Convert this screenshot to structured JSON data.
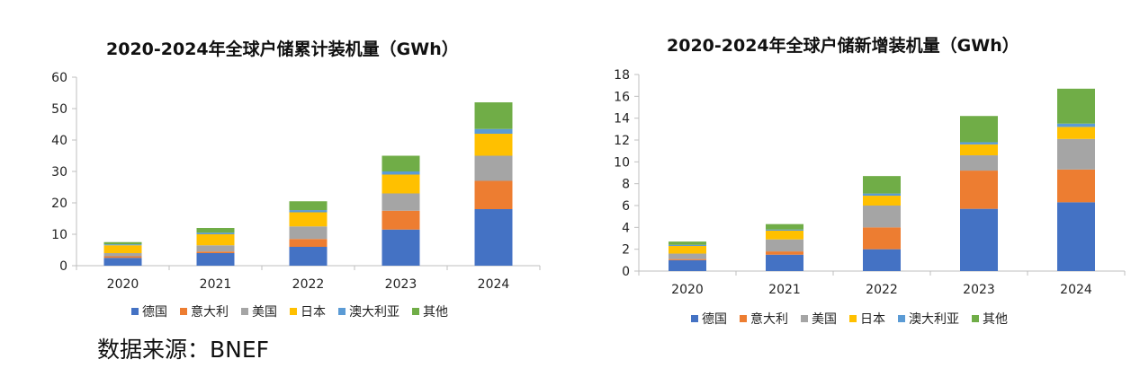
{
  "source_note": "数据来源：BNEF",
  "colors": {
    "德国": "#4472c4",
    "意大利": "#ed7d31",
    "美国": "#a5a5a5",
    "日本": "#ffc000",
    "澳大利亚": "#5b9bd5",
    "其他": "#70ad47"
  },
  "chart_data": [
    {
      "type": "bar",
      "stacked": true,
      "title": "2020-2024年全球户储累计装机量（GWh）",
      "categories": [
        "2020",
        "2021",
        "2022",
        "2023",
        "2024"
      ],
      "ylim": [
        0,
        60
      ],
      "yticks": [
        "0",
        "10",
        "20",
        "30",
        "40",
        "50",
        "60"
      ],
      "grid": false,
      "legend_position": "bottom",
      "series": [
        {
          "name": "德国",
          "values": [
            2.5,
            4.0,
            6.0,
            11.5,
            18.0
          ]
        },
        {
          "name": "意大利",
          "values": [
            0.5,
            0.5,
            2.5,
            6.0,
            9.0
          ]
        },
        {
          "name": "美国",
          "values": [
            1.0,
            2.0,
            4.0,
            5.5,
            8.0
          ]
        },
        {
          "name": "日本",
          "values": [
            2.5,
            3.5,
            4.5,
            6.0,
            7.0
          ]
        },
        {
          "name": "澳大利亚",
          "values": [
            0.3,
            0.5,
            0.7,
            1.0,
            1.5
          ]
        },
        {
          "name": "其他",
          "values": [
            0.7,
            1.5,
            2.8,
            5.0,
            8.5
          ]
        }
      ]
    },
    {
      "type": "bar",
      "stacked": true,
      "title": "2020-2024年全球户储新增装机量（GWh）",
      "categories": [
        "2020",
        "2021",
        "2022",
        "2023",
        "2024"
      ],
      "ylim": [
        0,
        18
      ],
      "yticks": [
        "0",
        "2",
        "4",
        "6",
        "8",
        "10",
        "12",
        "14",
        "16",
        "18"
      ],
      "grid": false,
      "legend_position": "bottom",
      "series": [
        {
          "name": "德国",
          "values": [
            1.0,
            1.5,
            2.0,
            5.7,
            6.3
          ]
        },
        {
          "name": "意大利",
          "values": [
            0.1,
            0.3,
            2.0,
            3.5,
            3.0
          ]
        },
        {
          "name": "美国",
          "values": [
            0.5,
            1.1,
            2.0,
            1.4,
            2.8
          ]
        },
        {
          "name": "日本",
          "values": [
            0.7,
            0.8,
            0.9,
            1.0,
            1.1
          ]
        },
        {
          "name": "澳大利亚",
          "values": [
            0.1,
            0.1,
            0.2,
            0.2,
            0.3
          ]
        },
        {
          "name": "其他",
          "values": [
            0.3,
            0.5,
            1.6,
            2.4,
            3.2
          ]
        }
      ]
    }
  ]
}
